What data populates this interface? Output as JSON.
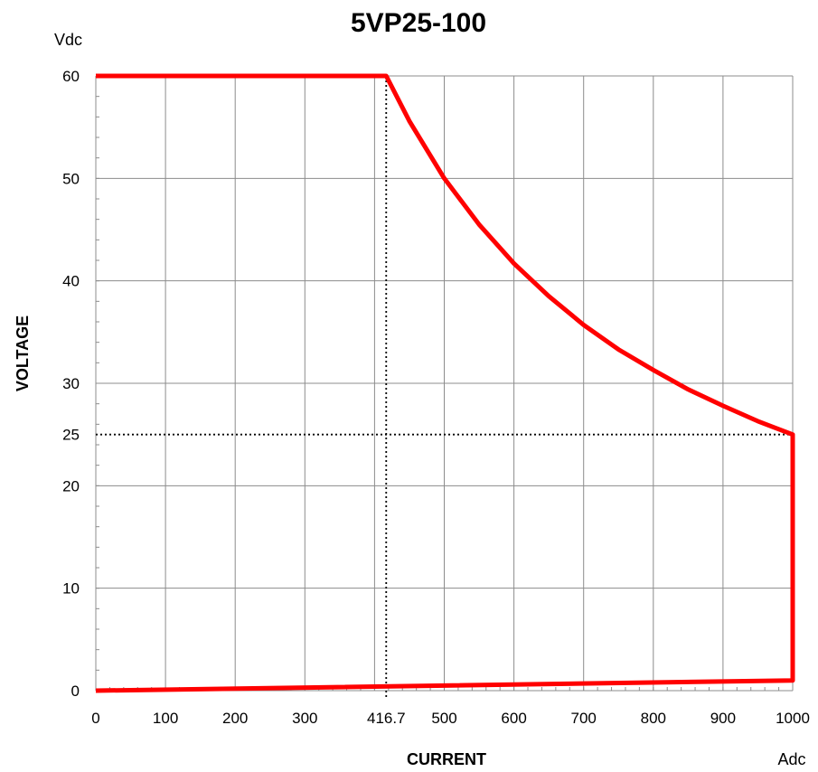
{
  "chart_data": {
    "type": "line",
    "title": "5VP25-100",
    "xlabel": "CURRENT",
    "ylabel": "VOLTAGE",
    "x_unit": "Adc",
    "y_unit": "Vdc",
    "xlim": [
      0,
      1000
    ],
    "ylim": [
      0,
      60
    ],
    "x_ticks": [
      0,
      100,
      200,
      300,
      416.7,
      500,
      600,
      700,
      800,
      900,
      1000
    ],
    "x_tick_labels": [
      "0",
      "100",
      "200",
      "300",
      "416.7",
      "500",
      "600",
      "700",
      "800",
      "900",
      "1000"
    ],
    "y_ticks": [
      0,
      10,
      20,
      25,
      30,
      40,
      50,
      60
    ],
    "y_tick_labels": [
      "0",
      "10",
      "20",
      "25",
      "30",
      "40",
      "50",
      "60"
    ],
    "grid": true,
    "reference_lines": [
      {
        "axis": "x",
        "value": 416.7,
        "style": "dotted"
      },
      {
        "axis": "y",
        "value": 25,
        "style": "dotted"
      }
    ],
    "series": [
      {
        "color": "#ff0000",
        "x": [
          0,
          416.7,
          450,
          500,
          550,
          600,
          650,
          700,
          750,
          800,
          850,
          900,
          950,
          1000,
          1000,
          0
        ],
        "y": [
          60,
          60,
          55.6,
          50,
          45.5,
          41.7,
          38.5,
          35.7,
          33.3,
          31.3,
          29.4,
          27.8,
          26.3,
          25,
          1,
          0
        ]
      }
    ]
  }
}
